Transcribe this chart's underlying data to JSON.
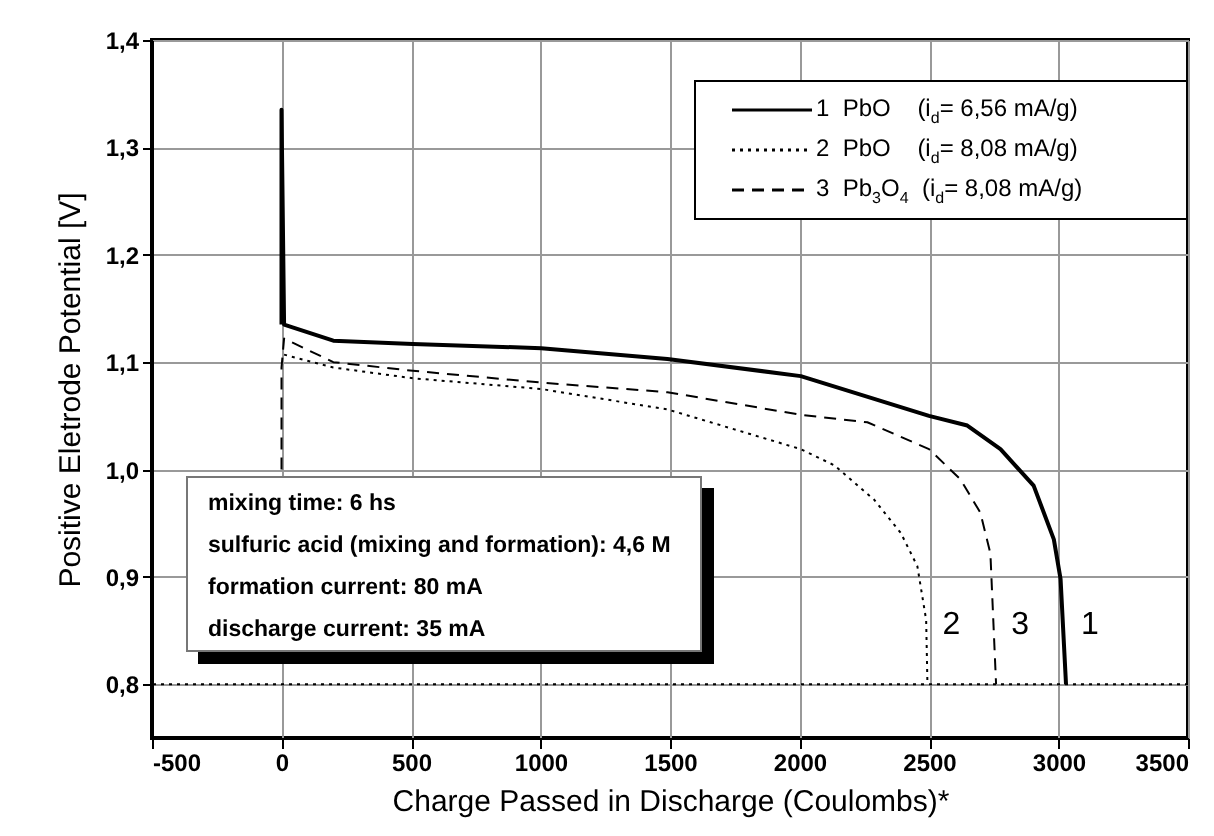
{
  "chart_data": {
    "type": "line",
    "xlabel": "Charge Passed in Discharge (Coulombs)*",
    "ylabel": "Positive Eletrode Potential [V]",
    "xlim": [
      -500,
      3500
    ],
    "xticks": [
      -500,
      0,
      500,
      1000,
      1500,
      2000,
      2500,
      3000,
      3500
    ],
    "ylim": [
      0.75,
      1.4
    ],
    "yticks": [
      {
        "value": 0.8,
        "label": "0,8"
      },
      {
        "value": 0.9,
        "label": "0,9"
      },
      {
        "value": 1.0,
        "label": "1,0"
      },
      {
        "value": 1.1,
        "label": "1,1"
      },
      {
        "value": 1.2,
        "label": "1,2"
      },
      {
        "value": 1.3,
        "label": "1,3"
      },
      {
        "value": 1.4,
        "label": "1,4"
      }
    ],
    "grid": true,
    "legend": "top right",
    "marker": "none",
    "series": [
      {
        "name": "1  PbO    (i$_{d}$= 6,56 mA/g)",
        "color": "#000000",
        "line_style": "solid",
        "x": [
          0,
          0,
          10,
          200,
          507,
          1003,
          1490,
          2005,
          2500,
          2648,
          2776,
          2904,
          2982,
          3008,
          3029
        ],
        "values": [
          1.135,
          1.335,
          1.135,
          1.12,
          1.117,
          1.113,
          1.103,
          1.087,
          1.05,
          1.041,
          1.019,
          0.985,
          0.935,
          0.898,
          0.8
        ]
      },
      {
        "name": "2  PbO    (i$_{d}$= 8,08 mA/g)",
        "color": "#000000",
        "line_style": "dotted",
        "x": [
          10,
          200,
          507,
          1003,
          1490,
          2005,
          2134,
          2288,
          2391,
          2455,
          2489,
          2494
        ],
        "values": [
          1.107,
          1.095,
          1.085,
          1.075,
          1.056,
          1.019,
          1.004,
          0.972,
          0.941,
          0.91,
          0.86,
          0.8
        ]
      },
      {
        "name": "3  Pb$_{3}$O$_{4}$  (i$_{d}$= 8,08 mA/g)",
        "color": "#000000",
        "line_style": "dashed",
        "x": [
          0,
          0,
          10,
          200,
          507,
          1003,
          1490,
          2005,
          2262,
          2500,
          2621,
          2698,
          2737,
          2759
        ],
        "values": [
          1.0,
          1.095,
          1.122,
          1.1,
          1.092,
          1.081,
          1.072,
          1.051,
          1.044,
          1.019,
          0.991,
          0.96,
          0.922,
          0.8
        ]
      }
    ],
    "ref_lines": [
      {
        "axis": "y",
        "value": 0.8,
        "line_style": "dotted"
      }
    ],
    "annotations": [
      "1",
      "2",
      "3",
      "mixing time: 6 hs",
      "sulfuric acid (mixing and formation): 4,6 M",
      "formation current: 80 mA",
      "discharge current: 35 mA"
    ]
  }
}
